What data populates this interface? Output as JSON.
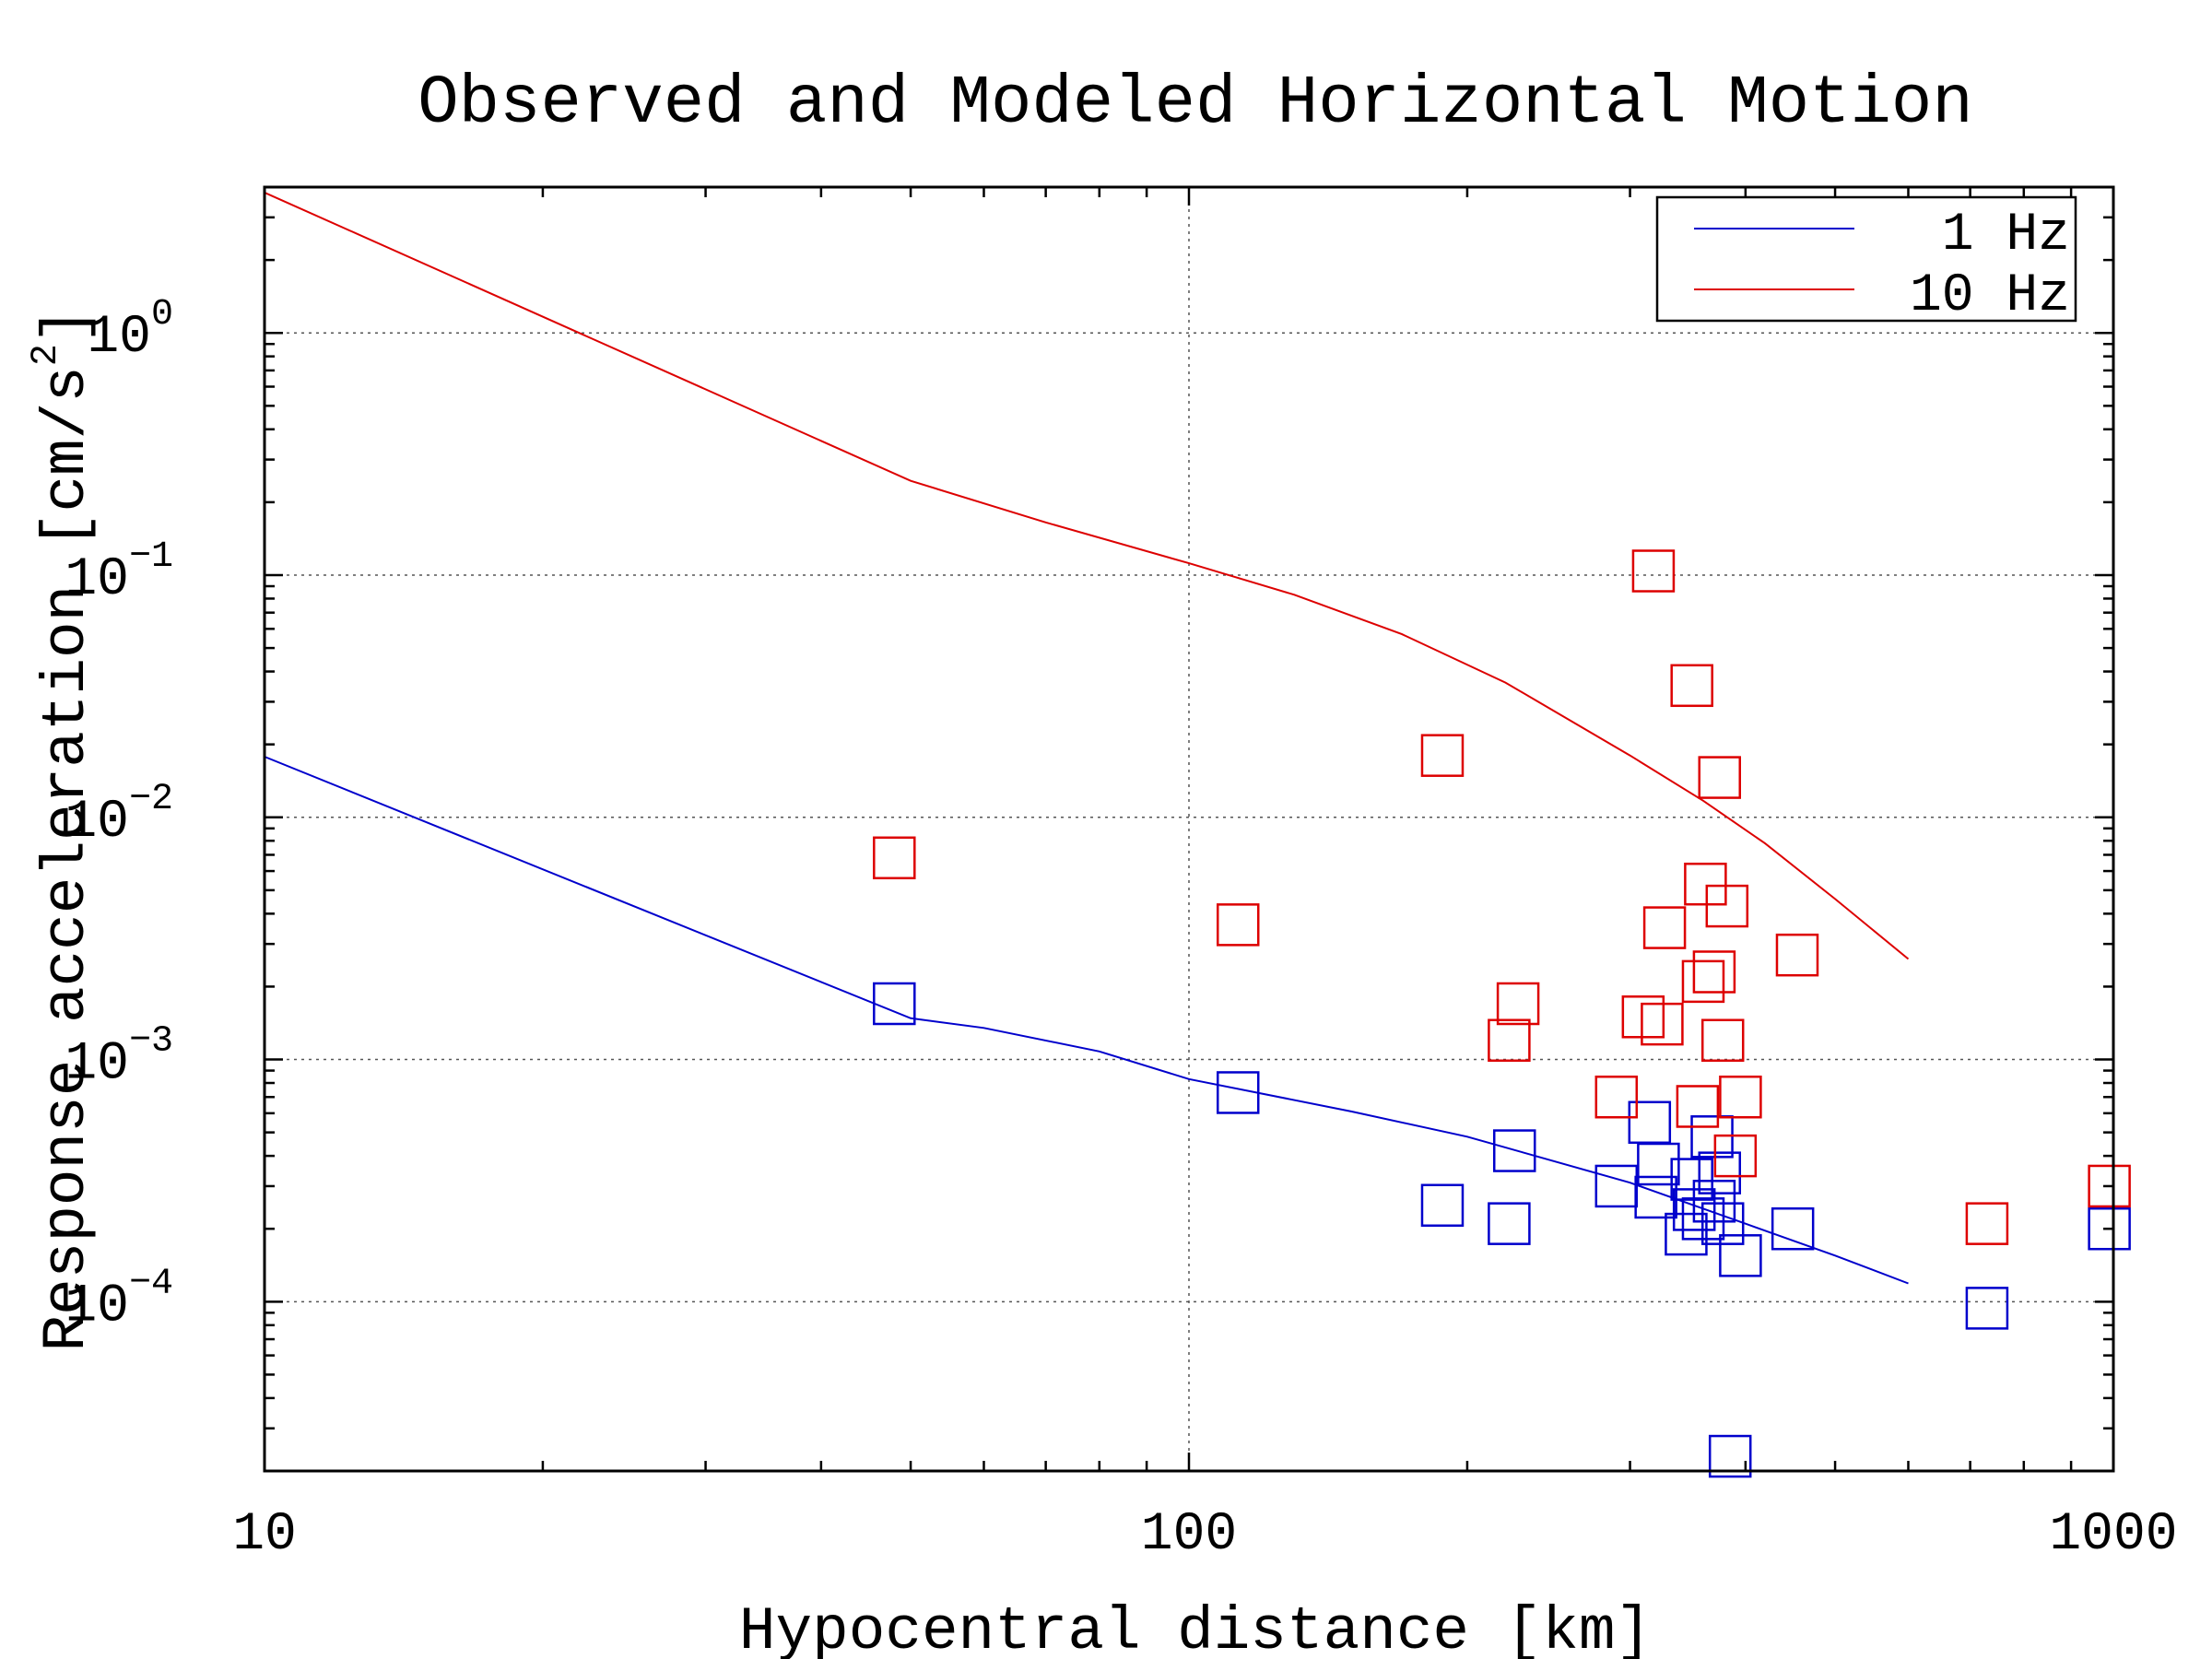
{
  "chart_data": {
    "type": "scatter",
    "title": "Observed and Modeled Horizontal Motion",
    "xlabel": "Hypocentral distance [km]",
    "ylabel": "Response acceleration [cm/s2]",
    "xscale": "log",
    "yscale": "log",
    "xlim": [
      10,
      1000
    ],
    "ylim": [
      2e-05,
      4
    ],
    "xticks": [
      {
        "value": 10,
        "label": "10"
      },
      {
        "value": 100,
        "label": "100"
      },
      {
        "value": 1000,
        "label": "1000"
      }
    ],
    "yticks": [
      {
        "value": 0.0001,
        "base": "10",
        "exponent": "−4"
      },
      {
        "value": 0.001,
        "base": "10",
        "exponent": "−3"
      },
      {
        "value": 0.01,
        "base": "10",
        "exponent": "−2"
      },
      {
        "value": 0.1,
        "base": "10",
        "exponent": "−1"
      },
      {
        "value": 1,
        "base": "10",
        "exponent": "0"
      }
    ],
    "grid": true,
    "legend_position": "top-right",
    "series": [
      {
        "name": "1 Hz",
        "color": "#0000cc",
        "line": [
          [
            10,
            0.0178
          ],
          [
            50,
            0.00148
          ],
          [
            60,
            0.00135
          ],
          [
            80,
            0.00108
          ],
          [
            100,
            0.00083
          ],
          [
            150,
            0.00061
          ],
          [
            200,
            0.00048
          ],
          [
            300,
            0.00031
          ],
          [
            400,
            0.00021
          ],
          [
            500,
            0.000155
          ],
          [
            600,
            0.000119
          ]
        ],
        "points": [
          [
            48,
            0.0017
          ],
          [
            113,
            0.00073
          ],
          [
            188,
            0.00025
          ],
          [
            222,
            0.00021
          ],
          [
            225,
            0.00042
          ],
          [
            290,
            0.0003
          ],
          [
            315,
            0.00055
          ],
          [
            320,
            0.00027
          ],
          [
            322,
            0.00037
          ],
          [
            345,
            0.00019
          ],
          [
            350,
            0.00032
          ],
          [
            352,
            0.00024
          ],
          [
            360,
            0.00022
          ],
          [
            368,
            0.00048
          ],
          [
            370,
            0.00026
          ],
          [
            375,
            0.00034
          ],
          [
            378,
            0.00021
          ],
          [
            385,
            2.3e-05
          ],
          [
            395,
            0.000155
          ],
          [
            450,
            0.0002
          ],
          [
            730,
            9.4e-05
          ],
          [
            990,
            0.0002
          ]
        ]
      },
      {
        "name": "10 Hz",
        "color": "#dd0000",
        "line": [
          [
            10,
            3.8
          ],
          [
            50,
            0.245
          ],
          [
            70,
            0.165
          ],
          [
            100,
            0.112
          ],
          [
            130,
            0.083
          ],
          [
            170,
            0.057
          ],
          [
            220,
            0.036
          ],
          [
            300,
            0.018
          ],
          [
            360,
            0.0117
          ],
          [
            420,
            0.0078
          ],
          [
            500,
            0.0046
          ],
          [
            600,
            0.0026
          ]
        ],
        "points": [
          [
            48,
            0.0068
          ],
          [
            113,
            0.0036
          ],
          [
            188,
            0.018
          ],
          [
            222,
            0.0012
          ],
          [
            227,
            0.0017
          ],
          [
            290,
            0.0007
          ],
          [
            310,
            0.0015
          ],
          [
            318,
            0.104
          ],
          [
            325,
            0.0014
          ],
          [
            327,
            0.0035
          ],
          [
            350,
            0.035
          ],
          [
            355,
            0.00064
          ],
          [
            360,
            0.0021
          ],
          [
            362,
            0.0053
          ],
          [
            370,
            0.0023
          ],
          [
            375,
            0.0146
          ],
          [
            378,
            0.0012
          ],
          [
            382,
            0.0043
          ],
          [
            390,
            0.0004
          ],
          [
            395,
            0.0007
          ],
          [
            455,
            0.0027
          ],
          [
            730,
            0.00021
          ],
          [
            990,
            0.0003
          ]
        ]
      }
    ]
  }
}
